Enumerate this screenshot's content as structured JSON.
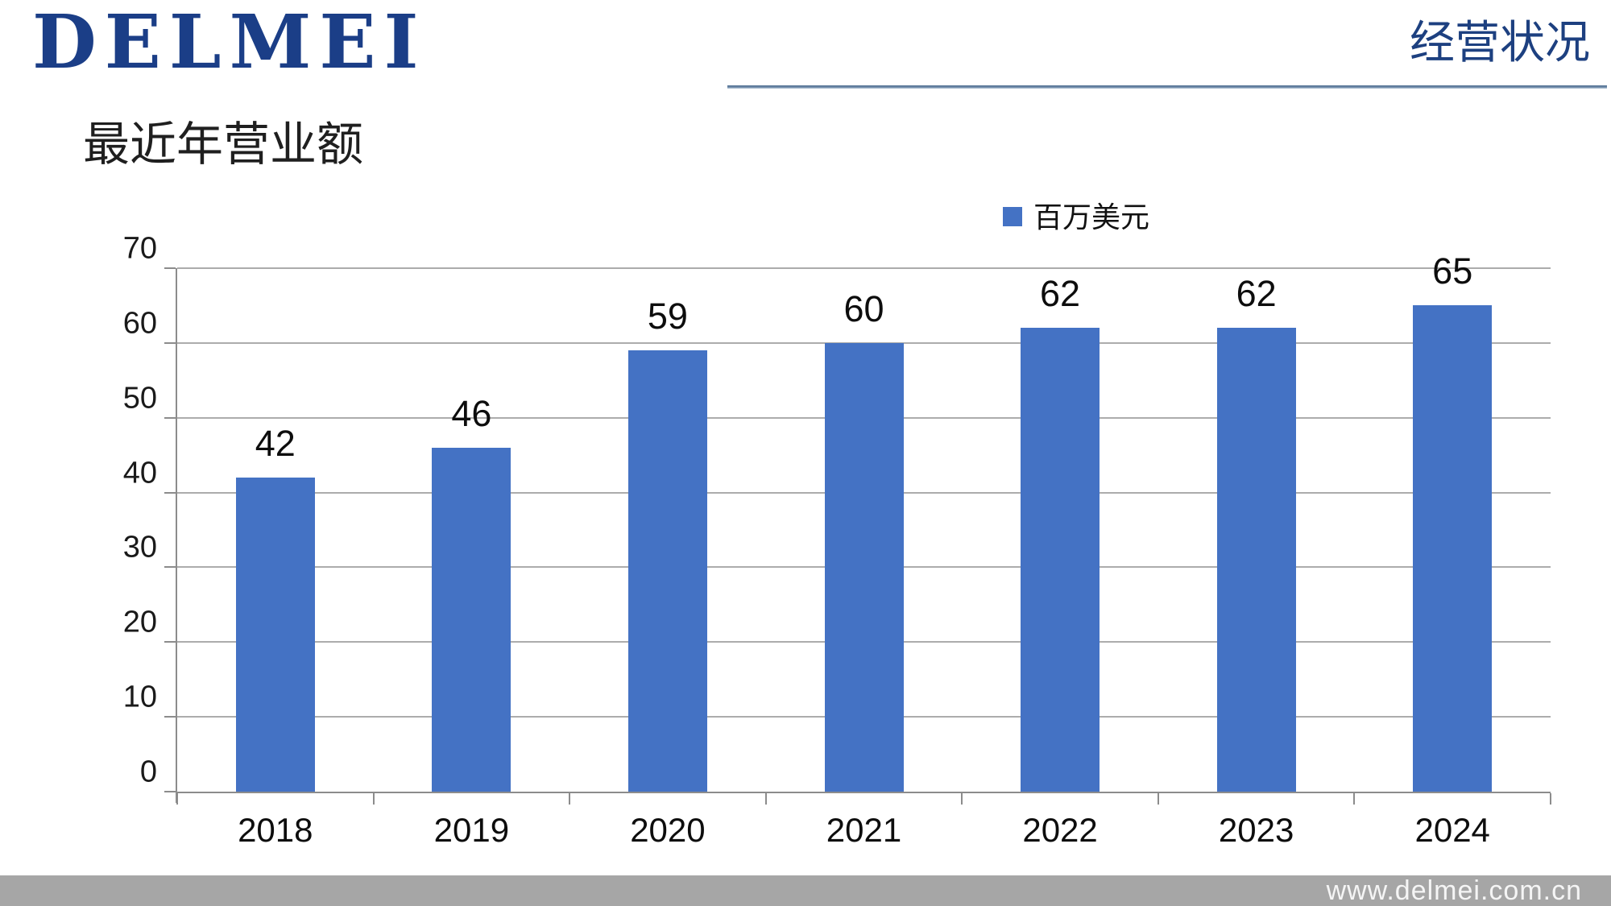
{
  "slide": {
    "logo": "DELMEI",
    "header_right": "经营状况",
    "title": "最近年营业额",
    "footer_url": "www.delmei.com.cn"
  },
  "chart_data": {
    "type": "bar",
    "title": "最近年营业额",
    "categories": [
      "2018",
      "2019",
      "2020",
      "2021",
      "2022",
      "2023",
      "2024"
    ],
    "series": [
      {
        "name": "百万美元",
        "values": [
          42,
          46,
          59,
          60,
          62,
          62,
          65
        ]
      }
    ],
    "ylim": [
      0,
      70
    ],
    "yticks": [
      0,
      10,
      20,
      30,
      40,
      50,
      60,
      70
    ],
    "grid": "horizontal",
    "legend_position": "top-right",
    "data_labels": true,
    "bar_color": "#4472C4",
    "gridline_color": "#ACACAC",
    "axis_color": "#8C8C8C"
  },
  "colors": {
    "logo_blue": "#1B3E87",
    "header_text_blue": "#1D4080",
    "bar_blue": "#4472C4",
    "footer_gray": "#A6A6A6"
  }
}
